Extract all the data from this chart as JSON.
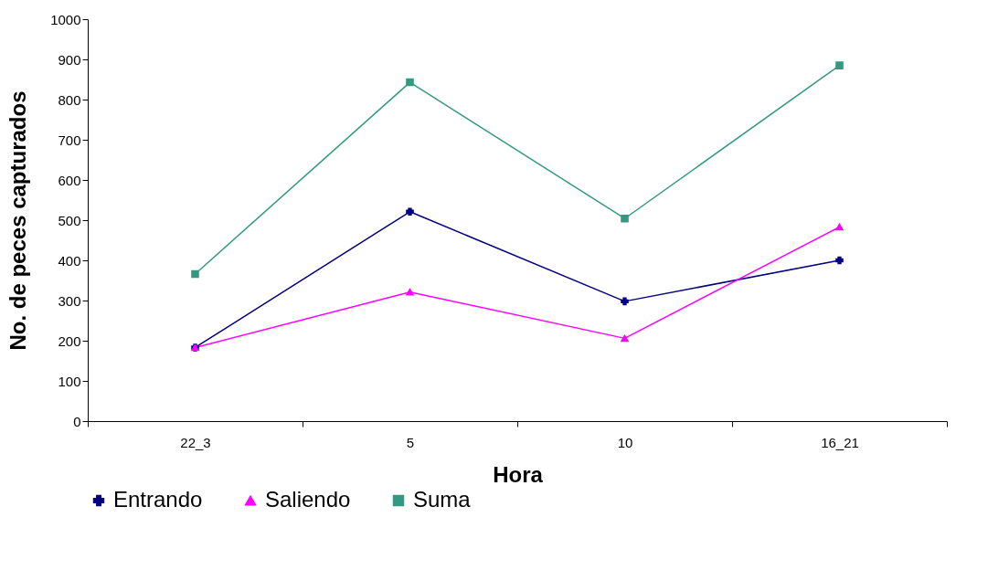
{
  "chart_data": {
    "type": "line",
    "xlabel": "Hora",
    "ylabel": "No. de peces capturados",
    "categories": [
      "22_3",
      "5",
      "10",
      "16_21"
    ],
    "series": [
      {
        "name": "Entrando",
        "color": "#000080",
        "marker": "cross",
        "values": [
          183,
          521,
          298,
          400
        ]
      },
      {
        "name": "Saliendo",
        "color": "#ff00ff",
        "marker": "triangle",
        "values": [
          183,
          321,
          206,
          483
        ]
      },
      {
        "name": "Suma",
        "color": "#339980",
        "marker": "square",
        "values": [
          366,
          843,
          504,
          885
        ]
      }
    ],
    "ylim": [
      0,
      1000
    ],
    "yticks": [
      0,
      100,
      200,
      300,
      400,
      500,
      600,
      700,
      800,
      900,
      1000
    ],
    "grid": false,
    "legend": "bottom"
  }
}
